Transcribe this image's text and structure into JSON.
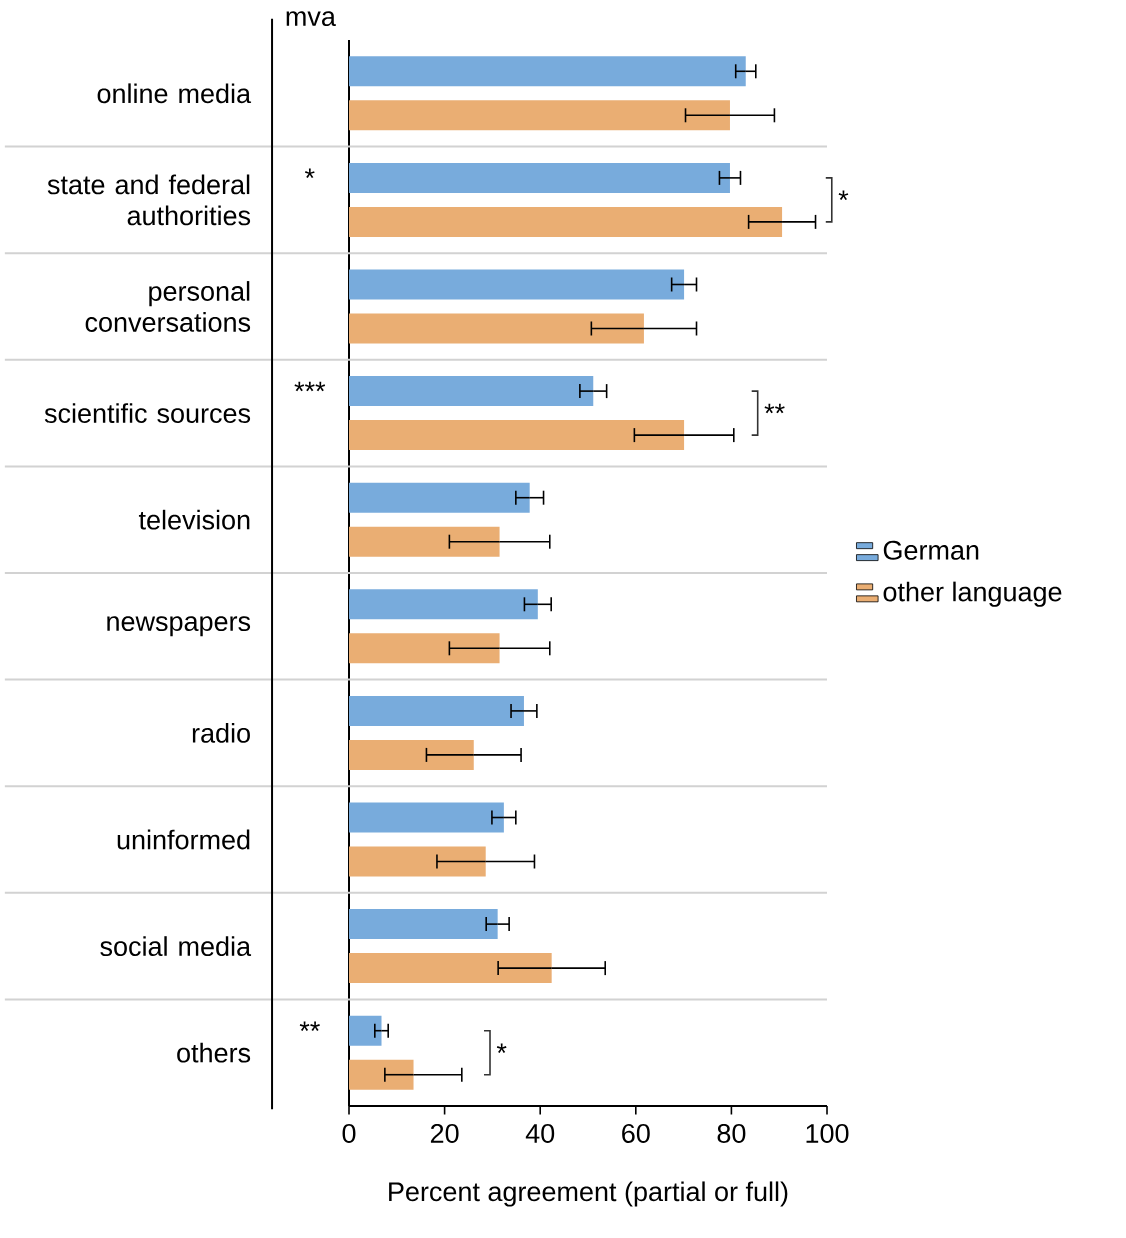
{
  "chart_data": {
    "type": "bar",
    "orientation": "horizontal",
    "xlabel": "Percent agreement (partial or full)",
    "categories": [
      "online media",
      "state and federal authorities",
      "personal conversations",
      "scientific sources",
      "television",
      "newspapers",
      "radio",
      "uninformed",
      "social media",
      "others"
    ],
    "series": [
      {
        "name": "German",
        "color": "#78abdc",
        "values": [
          83.0,
          79.7,
          70.1,
          51.1,
          37.8,
          39.5,
          36.6,
          32.4,
          31.1,
          6.8
        ],
        "errors": [
          2.1,
          2.2,
          2.6,
          2.8,
          2.9,
          2.8,
          2.7,
          2.5,
          2.4,
          1.4
        ]
      },
      {
        "name": "other language",
        "color": "#eaae73",
        "values": [
          79.7,
          90.6,
          61.7,
          70.1,
          31.5,
          31.5,
          26.1,
          28.6,
          42.4,
          13.5
        ],
        "errors": [
          9.3,
          7,
          11,
          10.4,
          10.5,
          10.5,
          9.9,
          10.2,
          11.2,
          [
            7.5,
            23.6
          ]
        ]
      }
    ],
    "xlim": [
      0,
      100
    ],
    "xticks": [
      0,
      20,
      40,
      60,
      80,
      100
    ],
    "grid": "y",
    "legend": "right",
    "annotations": [
      "mva",
      "*",
      "***",
      "**",
      "*",
      "**",
      "*"
    ]
  }
}
